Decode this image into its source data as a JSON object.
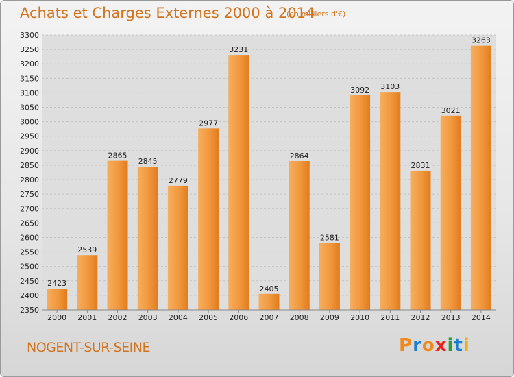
{
  "header": {
    "title": "Achats et Charges Externes 2000 à 2014",
    "subtitle": "(en milliers d'€)"
  },
  "footer": {
    "commune": "NOGENT-SUR-SEINE",
    "logo_letters": [
      "P",
      "r",
      "o",
      "x",
      "i",
      "t",
      "i"
    ],
    "logo_colors": [
      "#f08a1e",
      "#1a7fd0",
      "#f08a1e",
      "#e8241c",
      "#2d9d3a",
      "#1a7fd0",
      "#e8b21c"
    ]
  },
  "chart_data": {
    "type": "bar",
    "title": "Achats et Charges Externes 2000 à 2014",
    "categories": [
      "2000",
      "2001",
      "2002",
      "2003",
      "2004",
      "2005",
      "2006",
      "2007",
      "2008",
      "2009",
      "2010",
      "2011",
      "2012",
      "2013",
      "2014"
    ],
    "values": [
      2423,
      2539,
      2865,
      2845,
      2779,
      2977,
      3231,
      2405,
      2864,
      2581,
      3092,
      3103,
      2831,
      3021,
      3263
    ],
    "ylim": [
      2350,
      3300
    ],
    "yticks": [
      2350,
      2400,
      2450,
      2500,
      2550,
      2600,
      2650,
      2700,
      2750,
      2800,
      2850,
      2900,
      2950,
      3000,
      3050,
      3100,
      3150,
      3200,
      3250,
      3300
    ],
    "grid": true,
    "bar_color": "#f0973c",
    "bar_color_light": "#f7ae5e",
    "bar_color_dark": "#e07c1e"
  }
}
